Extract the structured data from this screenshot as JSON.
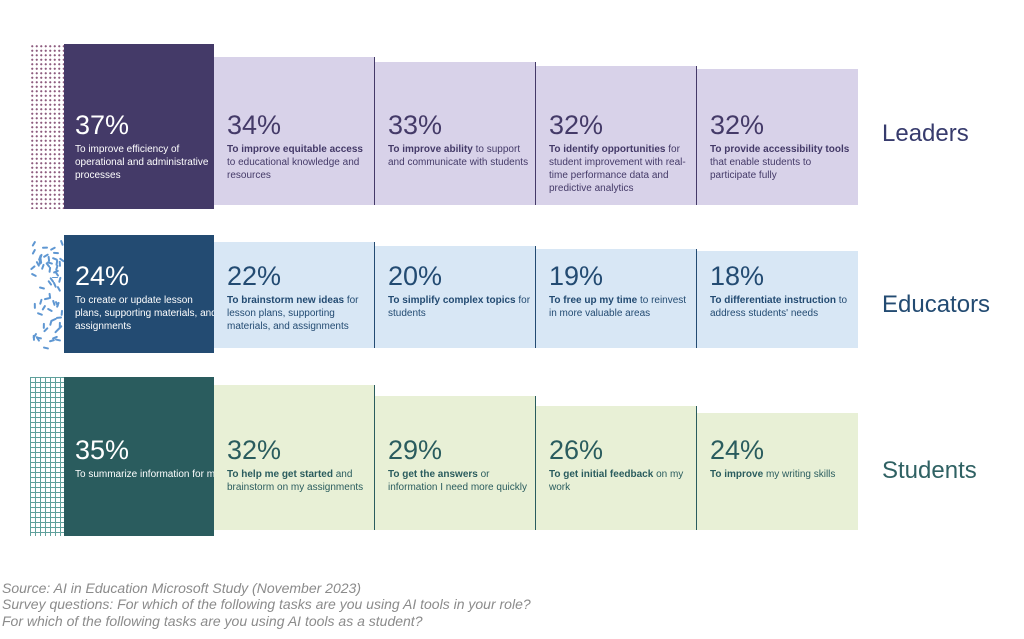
{
  "chart_data": {
    "type": "bar",
    "title": "",
    "unit": "%",
    "legend": null,
    "groups": [
      {
        "label": "Leaders",
        "colors": {
          "dark": "#443a68",
          "light": "#d8d2e9",
          "label": "#373b6d",
          "pattern": "#8d5c7e"
        },
        "items": [
          {
            "value": 37,
            "value_label": "37%",
            "bold": "",
            "text": "To improve efficiency of operational and administrative processes"
          },
          {
            "value": 34,
            "value_label": "34%",
            "bold": "To improve equitable access",
            "text": "to educational knowledge and resources"
          },
          {
            "value": 33,
            "value_label": "33%",
            "bold": "To improve ability",
            "text": "to support and communicate with students"
          },
          {
            "value": 32,
            "value_label": "32%",
            "bold": "To identify opportunities",
            "text": "for student improvement with real-time performance data and predictive analytics"
          },
          {
            "value": 32,
            "value_label": "32%",
            "bold": "To provide accessibility tools",
            "text": "that enable students to participate fully"
          }
        ]
      },
      {
        "label": "Educators",
        "colors": {
          "dark": "#234b72",
          "light": "#d8e7f5",
          "label": "#234b72",
          "pattern": "#5f97d2"
        },
        "items": [
          {
            "value": 24,
            "value_label": "24%",
            "bold": "",
            "text": "To create or update lesson plans, supporting materials, and assignments"
          },
          {
            "value": 22,
            "value_label": "22%",
            "bold": "To brainstorm new ideas",
            "text": "for lesson plans, supporting materials, and assignments"
          },
          {
            "value": 20,
            "value_label": "20%",
            "bold": "To simplify complex topics",
            "text": "for students"
          },
          {
            "value": 19,
            "value_label": "19%",
            "bold": "To free up my time",
            "text": "to reinvest in more valuable areas"
          },
          {
            "value": 18,
            "value_label": "18%",
            "bold": "To differentiate instruction",
            "text": "to address students' needs"
          }
        ]
      },
      {
        "label": "Students",
        "colors": {
          "dark": "#2a5c5e",
          "light": "#e8f0d6",
          "label": "#2f6163",
          "pattern": "#5fa09b"
        },
        "items": [
          {
            "value": 35,
            "value_label": "35%",
            "bold": "",
            "text": "To summarize information for me"
          },
          {
            "value": 32,
            "value_label": "32%",
            "bold": "To help me get started",
            "text": "and brainstorm on my assignments"
          },
          {
            "value": 29,
            "value_label": "29%",
            "bold": "To get the answers",
            "text": "or information I need more quickly"
          },
          {
            "value": 26,
            "value_label": "26%",
            "bold": "To get initial feedback",
            "text": "on my work"
          },
          {
            "value": 24,
            "value_label": "24%",
            "bold": "To improve",
            "text": "my writing skills"
          }
        ]
      }
    ]
  },
  "footer": {
    "lines": [
      "Source: AI in Education Microsoft Study (November 2023)",
      "Survey questions: For which of the following tasks are you using AI tools in your role?",
      "For which of the following tasks are you using AI tools as a student?"
    ]
  }
}
